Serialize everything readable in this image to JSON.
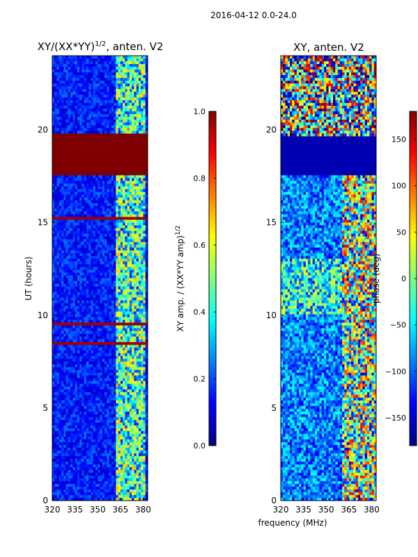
{
  "chart_data": {
    "type": "heatmap",
    "suptitle": "2016-04-12 0.0-24.0",
    "shared_xlabel": "frequency (MHz)",
    "panels": [
      {
        "id": "amp",
        "title_prefix": "XY/(XX*YY)",
        "title_sup": "1/2",
        "title_suffix": ", anten. V2",
        "ylabel": "UT (hours)",
        "xlim": [
          320,
          383
        ],
        "ylim": [
          0,
          24
        ],
        "xticks": [
          "320",
          "335",
          "350",
          "365",
          "380"
        ],
        "yticks": [
          "0",
          "5",
          "10",
          "15",
          "20"
        ],
        "colorbar": {
          "label_prefix": "XY amp. / (XX*YY amp)",
          "label_sup": "1/2",
          "range": [
            0.0,
            1.0
          ],
          "ticks": [
            "0.0",
            "0.2",
            "0.4",
            "0.6",
            "0.8",
            "1.0"
          ]
        }
      },
      {
        "id": "phase",
        "title": "XY, anten. V2",
        "xlim": [
          320,
          383
        ],
        "ylim": [
          0,
          24
        ],
        "xticks": [
          "320",
          "335",
          "350",
          "365",
          "380"
        ],
        "yticks": [
          "0",
          "5",
          "10",
          "15",
          "20"
        ],
        "colorbar": {
          "label": "phase (deg)",
          "range": [
            -180,
            180
          ],
          "ticks": [
            "−150",
            "−100",
            "−50",
            "0",
            "50",
            "100",
            "150"
          ]
        }
      }
    ]
  }
}
